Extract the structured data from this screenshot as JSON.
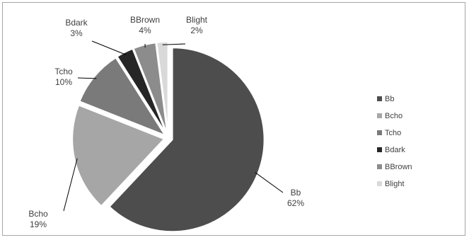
{
  "chart_data": {
    "type": "pie",
    "title": "",
    "categories": [
      "Bb",
      "Bcho",
      "Tcho",
      "Bdark",
      "BBrown",
      "Blight"
    ],
    "values": [
      62,
      19,
      10,
      3,
      4,
      2
    ],
    "value_labels": [
      "62%",
      "19%",
      "10%",
      "3%",
      "4%",
      "2%"
    ],
    "legend_labels": [
      "Bb",
      "Bcho",
      "Tcho",
      "Bdark",
      "BBrown",
      "Blight"
    ],
    "colors": [
      "#4d4d4d",
      "#a6a6a6",
      "#7a7a7a",
      "#262626",
      "#8c8c8c",
      "#d9d9d9"
    ],
    "legend_position": "right",
    "exploded": true
  }
}
